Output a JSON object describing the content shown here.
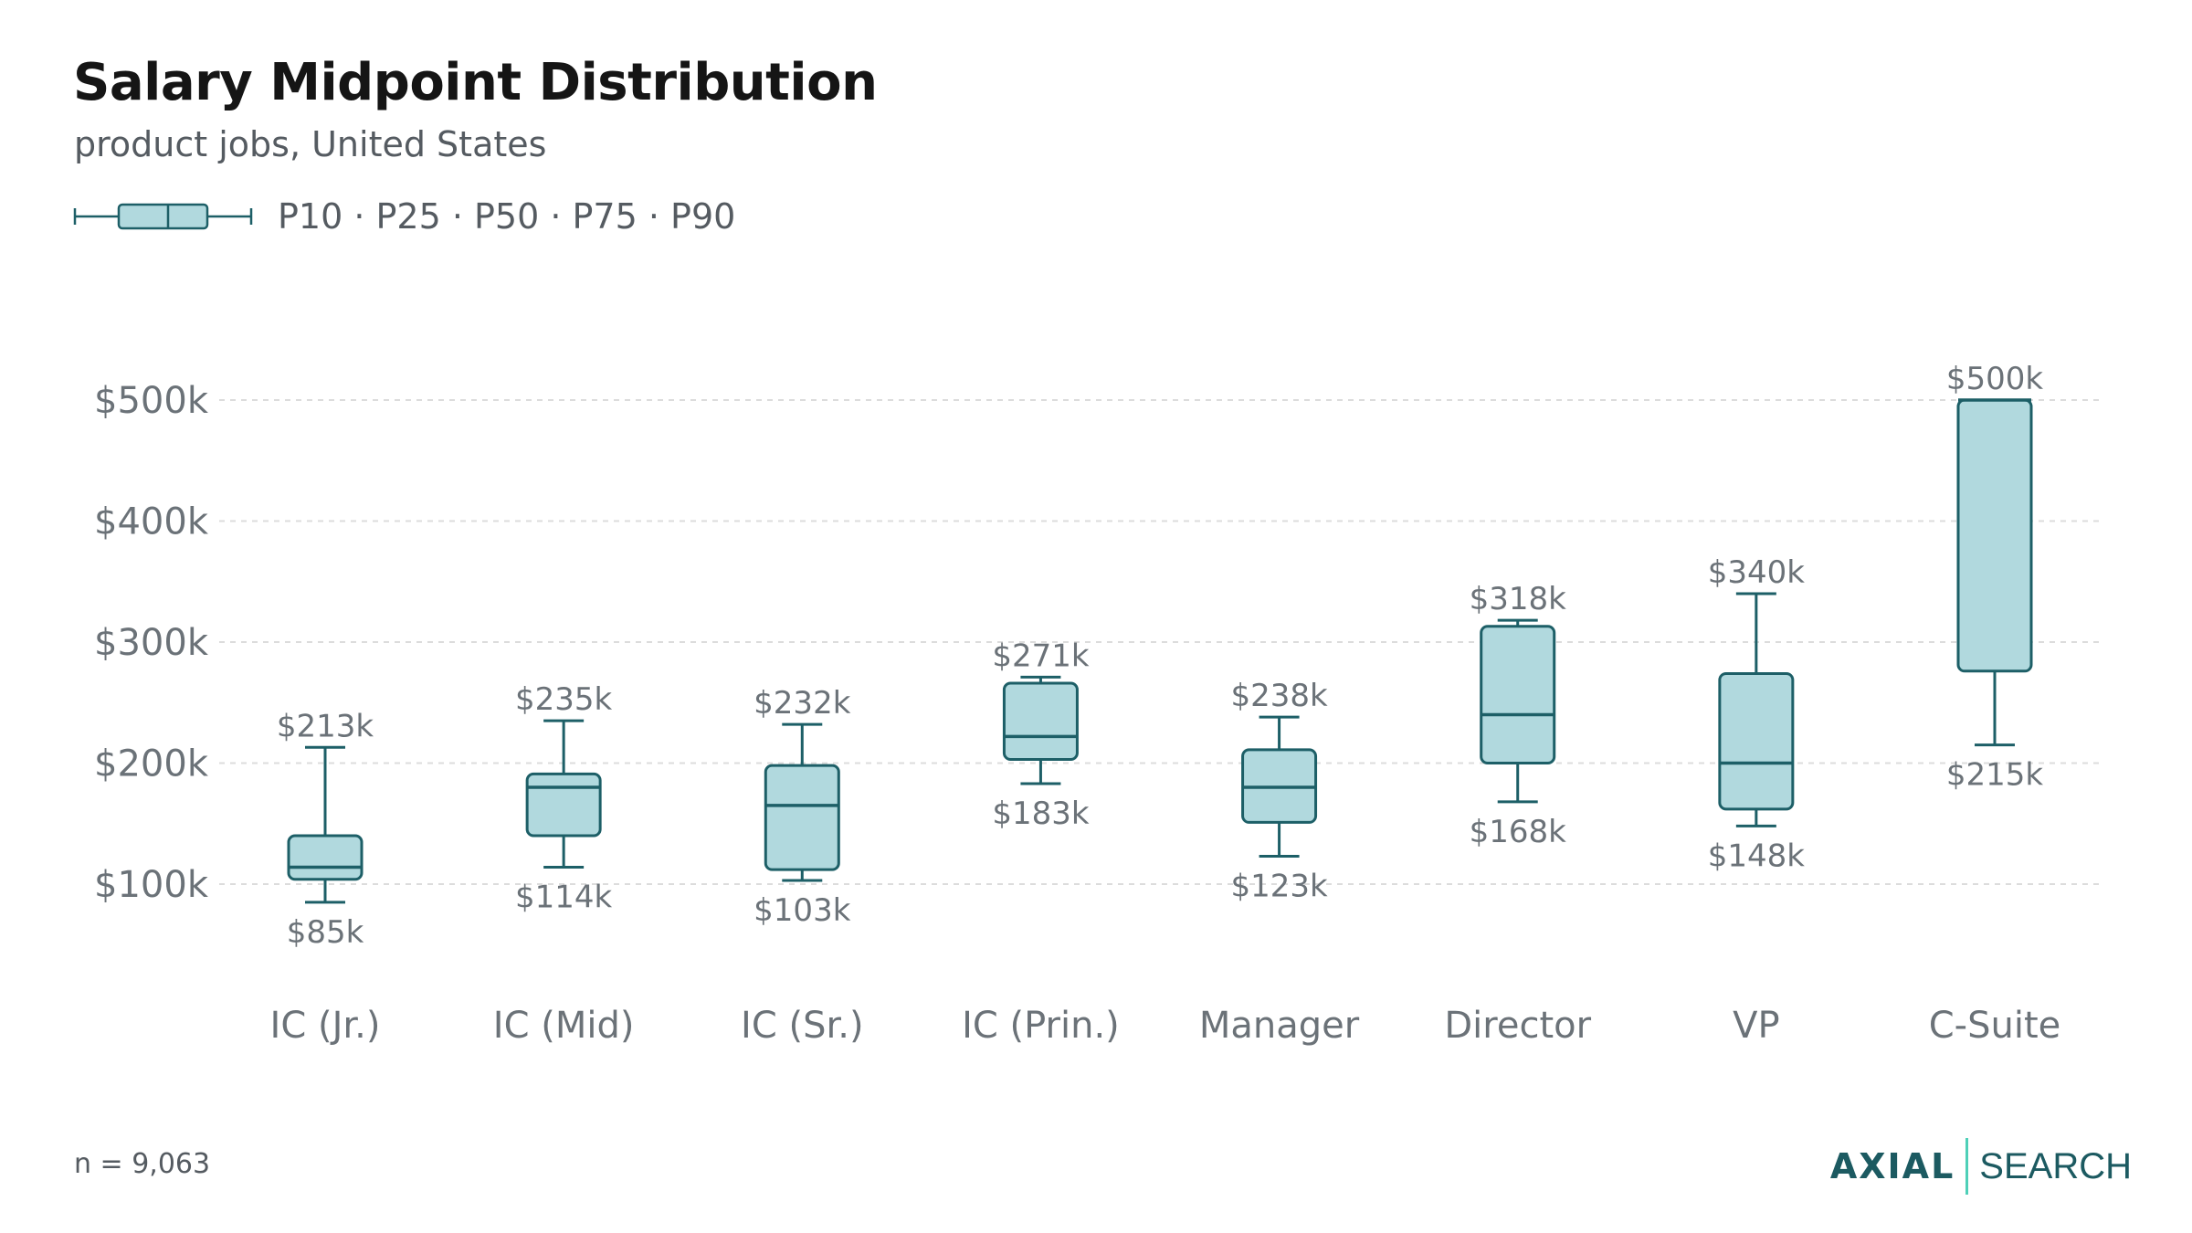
{
  "header": {
    "title": "Salary Midpoint Distribution",
    "subtitle": "product jobs, United States"
  },
  "legend": {
    "label": "P10 · P25 · P50 · P75 · P90"
  },
  "footer": {
    "sample_size": "n = 9,063",
    "brand_primary": "AXIAL",
    "brand_secondary": "SEARCH"
  },
  "colors": {
    "box_fill": "#b1d9de",
    "box_stroke": "#1d5f67",
    "grid": "#dcdcdc",
    "axis_text": "#6b7278",
    "brand": "#1c5a61",
    "brand_accent": "#4fd0b8"
  },
  "chart_data": {
    "type": "boxplot",
    "title": "Salary Midpoint Distribution",
    "subtitle": "product jobs, United States",
    "xlabel": "",
    "ylabel": "",
    "ylim": [
      40000,
      540000
    ],
    "yticks": [
      100000,
      200000,
      300000,
      400000,
      500000
    ],
    "ytick_labels": [
      "$100k",
      "$200k",
      "$300k",
      "$400k",
      "$500k"
    ],
    "grid": true,
    "categories": [
      "IC (Jr.)",
      "IC (Mid)",
      "IC (Sr.)",
      "IC (Prin.)",
      "Manager",
      "Director",
      "VP",
      "C-Suite"
    ],
    "boxes": [
      {
        "category": "IC (Jr.)",
        "p10": 85000,
        "p25": 104000,
        "p50": 114000,
        "p75": 140000,
        "p90": 213000,
        "p10_label": "$85k",
        "p90_label": "$213k"
      },
      {
        "category": "IC (Mid)",
        "p10": 114000,
        "p25": 140000,
        "p50": 180000,
        "p75": 191000,
        "p90": 235000,
        "p10_label": "$114k",
        "p90_label": "$235k"
      },
      {
        "category": "IC (Sr.)",
        "p10": 103000,
        "p25": 112000,
        "p50": 165000,
        "p75": 198000,
        "p90": 232000,
        "p10_label": "$103k",
        "p90_label": "$232k"
      },
      {
        "category": "IC (Prin.)",
        "p10": 183000,
        "p25": 203000,
        "p50": 222000,
        "p75": 266000,
        "p90": 271000,
        "p10_label": "$183k",
        "p90_label": "$271k"
      },
      {
        "category": "Manager",
        "p10": 123000,
        "p25": 151000,
        "p50": 180000,
        "p75": 211000,
        "p90": 238000,
        "p10_label": "$123k",
        "p90_label": "$238k"
      },
      {
        "category": "Director",
        "p10": 168000,
        "p25": 200000,
        "p50": 240000,
        "p75": 313000,
        "p90": 318000,
        "p10_label": "$168k",
        "p90_label": "$318k"
      },
      {
        "category": "VP",
        "p10": 148000,
        "p25": 162000,
        "p50": 200000,
        "p75": 274000,
        "p90": 340000,
        "p10_label": "$148k",
        "p90_label": "$340k"
      },
      {
        "category": "C-Suite",
        "p10": 215000,
        "p25": 276000,
        "p50": 500000,
        "p75": 500000,
        "p90": 500000,
        "p10_label": "$215k",
        "p90_label": "$500k"
      }
    ]
  }
}
